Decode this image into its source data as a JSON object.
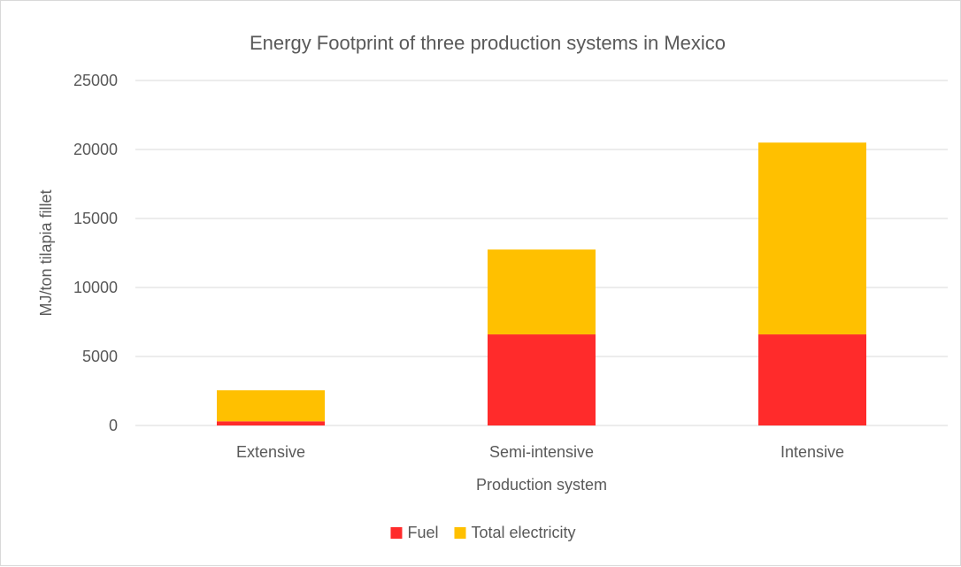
{
  "chart_data": {
    "type": "bar",
    "stacked": true,
    "title": "Energy Footprint of three production systems in Mexico",
    "xlabel": "Production system",
    "ylabel": "MJ/ton tilapia fillet",
    "ylim": [
      0,
      25000
    ],
    "yticks": [
      0,
      5000,
      10000,
      15000,
      20000,
      25000
    ],
    "ytick_labels": [
      "0",
      "5000",
      "10000",
      "15000",
      "20000",
      "25000"
    ],
    "categories": [
      "Extensive",
      "Semi-intensive",
      "Intensive"
    ],
    "series": [
      {
        "name": "Fuel",
        "color": "#ff2b2b",
        "values": [
          300,
          6600,
          6600
        ]
      },
      {
        "name": "Total electricity",
        "color": "#ffc000",
        "values": [
          2250,
          6150,
          13900
        ]
      }
    ],
    "grid": true,
    "legend": "bottom"
  }
}
